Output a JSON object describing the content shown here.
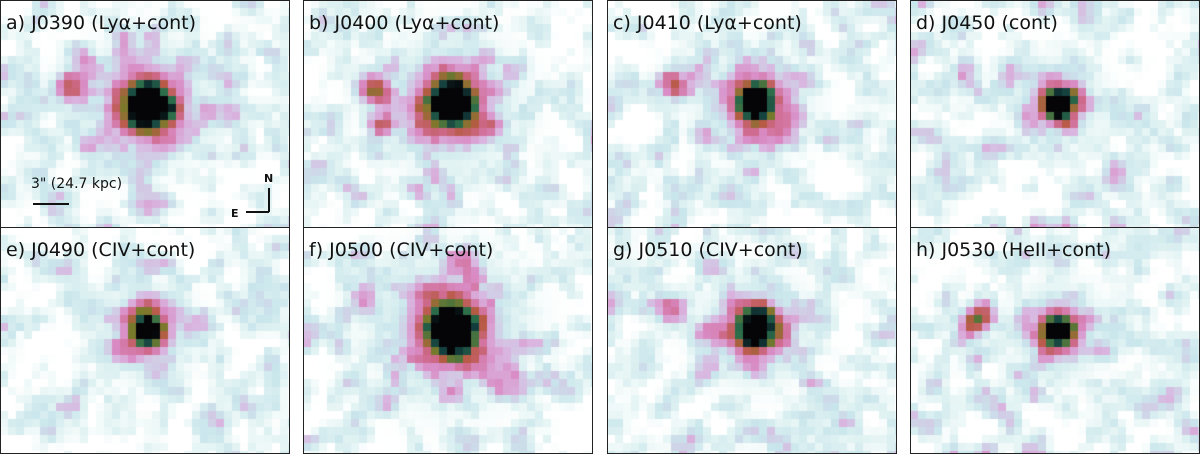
{
  "panels": [
    {
      "label": "a) J0390 (Lyα+cont)",
      "source_peak": 1.0,
      "source_spread": 1.0,
      "companion": 0.55,
      "companion2": 0.3,
      "seed": 11
    },
    {
      "label": "b) J0400 (Lyα+cont)",
      "source_peak": 1.0,
      "source_spread": 1.05,
      "companion": 0.55,
      "companion2": 0.4,
      "seed": 23
    },
    {
      "label": "c) J0410 (Lyα+cont)",
      "source_peak": 0.95,
      "source_spread": 0.85,
      "companion": 0.45,
      "companion2": 0.1,
      "seed": 37
    },
    {
      "label": "d) J0450 (cont)",
      "source_peak": 0.9,
      "source_spread": 0.7,
      "companion": 0.25,
      "companion2": 0.0,
      "seed": 41
    },
    {
      "label": "e) J0490 (CIV+cont)",
      "source_peak": 0.9,
      "source_spread": 0.75,
      "companion": 0.2,
      "companion2": 0.0,
      "seed": 53
    },
    {
      "label": "f) J0500 (CIV+cont)",
      "source_peak": 0.95,
      "source_spread": 1.2,
      "companion": 0.3,
      "companion2": 0.0,
      "seed": 67
    },
    {
      "label": "g) J0510 (CIV+cont)",
      "source_peak": 0.95,
      "source_spread": 0.85,
      "companion": 0.45,
      "companion2": 0.0,
      "seed": 71
    },
    {
      "label": "h) J0530 (HeII+cont)",
      "source_peak": 0.9,
      "source_spread": 0.75,
      "companion": 0.45,
      "companion2": 0.0,
      "seed": 83
    }
  ],
  "scalebar": {
    "label": "3\" (24.7 kpc)"
  },
  "compass": {
    "north": "N",
    "east": "E"
  },
  "colormap": [
    "#ffffff",
    "#e2f3f3",
    "#c9e6ec",
    "#d9b6e0",
    "#d98bc4",
    "#cf6a8e",
    "#b85a45",
    "#7a7a2a",
    "#2c6e4a",
    "#14403f",
    "#050508"
  ]
}
